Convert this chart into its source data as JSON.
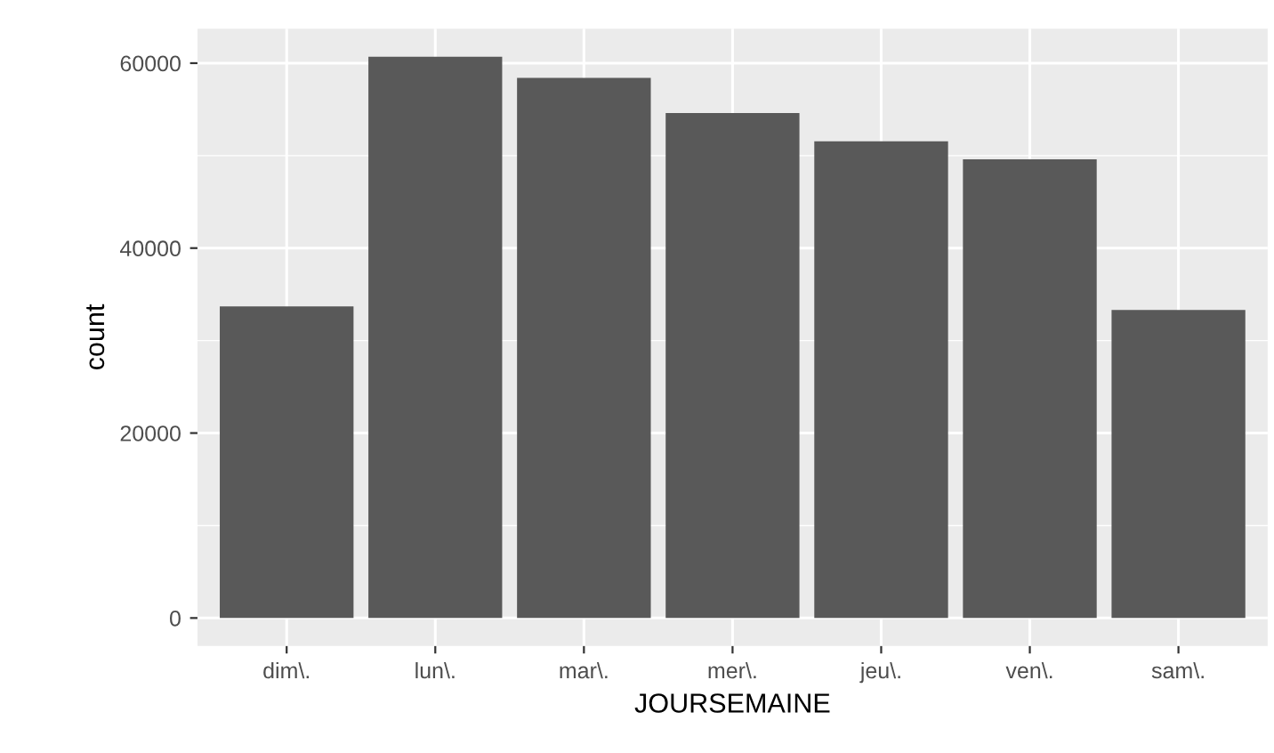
{
  "chart_data": {
    "type": "bar",
    "xlabel": "JOURSEMAINE",
    "ylabel": "count",
    "categories": [
      "dim\\.",
      "lun\\.",
      "mar\\.",
      "mer\\.",
      "jeu\\.",
      "ven\\.",
      "sam\\."
    ],
    "values": [
      33700,
      60700,
      58400,
      54600,
      51550,
      49600,
      33300
    ],
    "color": "#595959",
    "ylim": [
      -3035,
      63735
    ],
    "yticks": [
      0,
      20000,
      40000,
      60000
    ],
    "grid": true
  }
}
